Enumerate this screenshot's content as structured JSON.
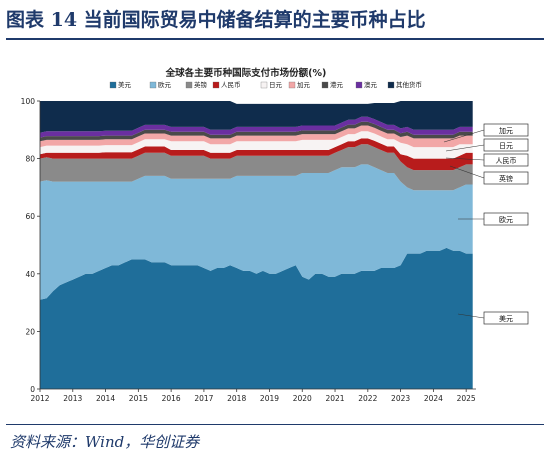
{
  "figure": {
    "title": "图表 14   当前国际贸易中储备结算的主要币种占比",
    "source": "资料来源：Wind，华创证券"
  },
  "chart_data": {
    "type": "area",
    "stacked": true,
    "title": "全球各主要币种国际支付市场份额(%)",
    "xlabel": "",
    "ylabel": "",
    "x_ticks": [
      "2012",
      "2013",
      "2014",
      "2015",
      "2016",
      "2017",
      "2018",
      "2019",
      "2020",
      "2021",
      "2022",
      "2023",
      "2024",
      "2025"
    ],
    "y_ticks": [
      "0",
      "20",
      "40",
      "60",
      "80",
      "100"
    ],
    "ylim": [
      0,
      100
    ],
    "x_range": [
      2012.0,
      2025.3
    ],
    "legend_position": "top",
    "x": [
      2012.0,
      2012.2,
      2012.4,
      2012.6,
      2012.8,
      2013.0,
      2013.2,
      2013.4,
      2013.6,
      2013.8,
      2014.0,
      2014.2,
      2014.4,
      2014.6,
      2014.8,
      2015.0,
      2015.2,
      2015.4,
      2015.6,
      2015.8,
      2016.0,
      2016.2,
      2016.4,
      2016.6,
      2016.8,
      2017.0,
      2017.2,
      2017.4,
      2017.6,
      2017.8,
      2018.0,
      2018.2,
      2018.4,
      2018.6,
      2018.8,
      2019.0,
      2019.2,
      2019.4,
      2019.6,
      2019.8,
      2020.0,
      2020.2,
      2020.4,
      2020.6,
      2020.8,
      2021.0,
      2021.2,
      2021.4,
      2021.6,
      2021.8,
      2022.0,
      2022.2,
      2022.4,
      2022.6,
      2022.8,
      2023.0,
      2023.2,
      2023.4,
      2023.6,
      2023.8,
      2024.0,
      2024.2,
      2024.4,
      2024.6,
      2024.8,
      2025.0,
      2025.2
    ],
    "series": [
      {
        "name": "美元",
        "color": "#1f6e9a",
        "values": [
          31,
          31.5,
          34,
          36,
          37,
          38,
          39,
          40,
          40,
          41,
          42,
          43,
          43,
          44,
          45,
          45,
          45,
          44,
          44,
          44,
          43,
          43,
          43,
          43,
          43,
          42,
          41,
          42,
          42,
          43,
          42,
          41,
          41,
          40,
          41,
          40,
          40,
          41,
          42,
          43,
          39,
          38,
          40,
          40,
          39,
          39,
          40,
          40,
          40,
          41,
          41,
          41,
          42,
          42,
          42,
          43,
          47,
          47,
          47,
          48,
          48,
          48,
          49,
          48,
          48,
          47,
          47
        ]
      },
      {
        "name": "欧元",
        "color": "#7fb8d8",
        "values": [
          41,
          41,
          38,
          36,
          35,
          34,
          33,
          32,
          32,
          31,
          30,
          29,
          29,
          28,
          27,
          28,
          29,
          30,
          30,
          30,
          30,
          30,
          30,
          30,
          30,
          31,
          32,
          31,
          31,
          30,
          32,
          33,
          33,
          34,
          33,
          34,
          34,
          33,
          32,
          31,
          36,
          37,
          35,
          35,
          36,
          37,
          37,
          37,
          37,
          37,
          37,
          36,
          34,
          33,
          33,
          29,
          23,
          22,
          22,
          21,
          21,
          21,
          20,
          21,
          22,
          24,
          24
        ]
      },
      {
        "name": "英镑",
        "color": "#8a8a8a",
        "values": [
          8,
          8,
          8,
          8,
          8,
          8,
          8,
          8,
          8,
          8,
          8,
          8,
          8,
          8,
          8,
          8,
          8,
          8,
          8,
          8,
          8,
          8,
          8,
          8,
          8,
          8,
          7,
          7,
          7,
          7,
          7,
          7,
          7,
          7,
          7,
          7,
          7,
          7,
          7,
          7,
          6,
          6,
          6,
          6,
          6,
          6,
          6,
          7,
          7,
          7,
          7,
          7,
          7,
          7,
          7,
          7,
          7,
          7,
          7,
          7,
          7,
          7,
          7,
          7,
          7,
          7,
          7
        ]
      },
      {
        "name": "人民币",
        "color": "#b81c1c",
        "values": [
          1.5,
          1.5,
          2,
          2,
          2,
          2,
          2,
          2,
          2,
          2,
          2.2,
          2.2,
          2.2,
          2.2,
          2.2,
          2.2,
          2.2,
          2.2,
          2.2,
          2.2,
          2,
          2,
          2,
          2,
          2,
          2,
          2,
          2,
          2,
          2,
          2,
          2,
          2,
          2,
          2,
          2,
          2,
          2,
          2,
          2,
          2,
          2,
          2,
          2,
          2,
          2,
          2,
          2,
          2,
          2,
          2,
          2.2,
          2.2,
          2.2,
          2.2,
          2.5,
          4,
          4,
          4,
          4,
          4,
          4,
          4,
          4,
          4,
          4,
          4
        ]
      },
      {
        "name": "日元",
        "color": "#f7f3f3",
        "values": [
          2.5,
          2.5,
          2.5,
          2.5,
          2.5,
          2.5,
          2.5,
          2.5,
          2.5,
          2.5,
          2.5,
          2.5,
          2.5,
          2.5,
          2.5,
          2.5,
          2.5,
          2.5,
          2.5,
          2.5,
          3,
          3,
          3,
          3,
          3,
          3,
          3,
          3,
          3,
          3,
          3,
          3,
          3,
          3,
          3,
          3,
          3,
          3,
          3,
          3,
          3.5,
          3.5,
          3.5,
          3.5,
          3.5,
          2.5,
          2.5,
          2.5,
          2.5,
          2.5,
          2.5,
          2.5,
          2.5,
          2.5,
          2.5,
          4,
          4,
          4,
          4,
          4,
          4,
          4,
          4,
          4,
          4,
          3,
          3
        ]
      },
      {
        "name": "加元",
        "color": "#f2a7a7",
        "values": [
          2,
          2,
          2,
          2,
          2,
          2,
          2,
          2,
          2,
          2,
          2,
          2,
          2,
          2,
          2,
          2,
          2,
          2,
          2,
          2,
          2,
          2,
          2,
          2,
          2,
          2,
          2,
          2,
          2,
          2,
          2,
          2,
          2,
          2,
          2,
          2,
          2,
          2,
          2,
          2,
          2,
          2,
          2,
          2,
          2,
          2,
          2,
          2,
          2,
          2,
          2,
          2,
          2,
          2,
          2,
          2,
          3,
          3,
          3,
          3,
          3,
          3,
          3,
          3,
          3,
          3,
          3
        ]
      },
      {
        "name": "港元",
        "color": "#4a4a4a",
        "values": [
          1.3,
          1.3,
          1.3,
          1.3,
          1.3,
          1.3,
          1.3,
          1.3,
          1.3,
          1.3,
          1.3,
          1.3,
          1.3,
          1.3,
          1.3,
          1.3,
          1.3,
          1.3,
          1.3,
          1.3,
          1.3,
          1.3,
          1.3,
          1.3,
          1.3,
          1.3,
          1.3,
          1.3,
          1.3,
          1.3,
          1.3,
          1.3,
          1.3,
          1.3,
          1.3,
          1.3,
          1.3,
          1.3,
          1.3,
          1.3,
          1.3,
          1.3,
          1.3,
          1.3,
          1.3,
          1.3,
          1.3,
          1.3,
          1.3,
          1.3,
          1.3,
          1.3,
          1.3,
          1.3,
          1.3,
          1.3,
          1.3,
          1.3,
          1.3,
          1.3,
          1.3,
          1.3,
          1.3,
          1.3,
          1.3,
          1.3,
          1.3
        ]
      },
      {
        "name": "澳元",
        "color": "#6a2fa0",
        "values": [
          1.7,
          1.7,
          1.7,
          1.7,
          1.7,
          1.7,
          1.7,
          1.7,
          1.7,
          1.7,
          1.7,
          1.7,
          1.7,
          1.7,
          1.7,
          1.7,
          1.7,
          1.7,
          1.7,
          1.7,
          1.7,
          1.7,
          1.7,
          1.7,
          1.7,
          1.7,
          1.7,
          1.7,
          1.7,
          1.7,
          1.7,
          1.7,
          1.7,
          1.7,
          1.7,
          1.7,
          1.7,
          1.7,
          1.7,
          1.7,
          1.7,
          1.7,
          1.7,
          1.7,
          1.7,
          1.7,
          1.7,
          1.7,
          1.7,
          1.7,
          1.7,
          1.7,
          1.7,
          1.7,
          1.7,
          1.7,
          1.7,
          1.7,
          1.7,
          1.7,
          1.7,
          1.7,
          1.7,
          1.7,
          1.7,
          1.7,
          1.7
        ]
      },
      {
        "name": "其他货币",
        "color": "#0f2c4c",
        "values": [
          11,
          10.5,
          10.5,
          10.5,
          10.5,
          10.5,
          10.5,
          10.5,
          10.5,
          10.5,
          10.3,
          10.3,
          10.3,
          10.3,
          10.3,
          9.3,
          8.3,
          8.3,
          8.3,
          8.3,
          9,
          9,
          9,
          9,
          9,
          9,
          10,
          10,
          10,
          10,
          8,
          8,
          8,
          8,
          8,
          8,
          8,
          8,
          8,
          8,
          7.5,
          7.5,
          7.5,
          7.5,
          7.5,
          7.5,
          6.5,
          5.5,
          5.5,
          4.5,
          4.5,
          5.6,
          6.6,
          7.6,
          7.6,
          9.5,
          9,
          10,
          10,
          10,
          10,
          10,
          10,
          10,
          9,
          9,
          9
        ]
      }
    ],
    "annotations": [
      "加元",
      "日元",
      "人民币",
      "英镑",
      "欧元",
      "美元"
    ]
  }
}
